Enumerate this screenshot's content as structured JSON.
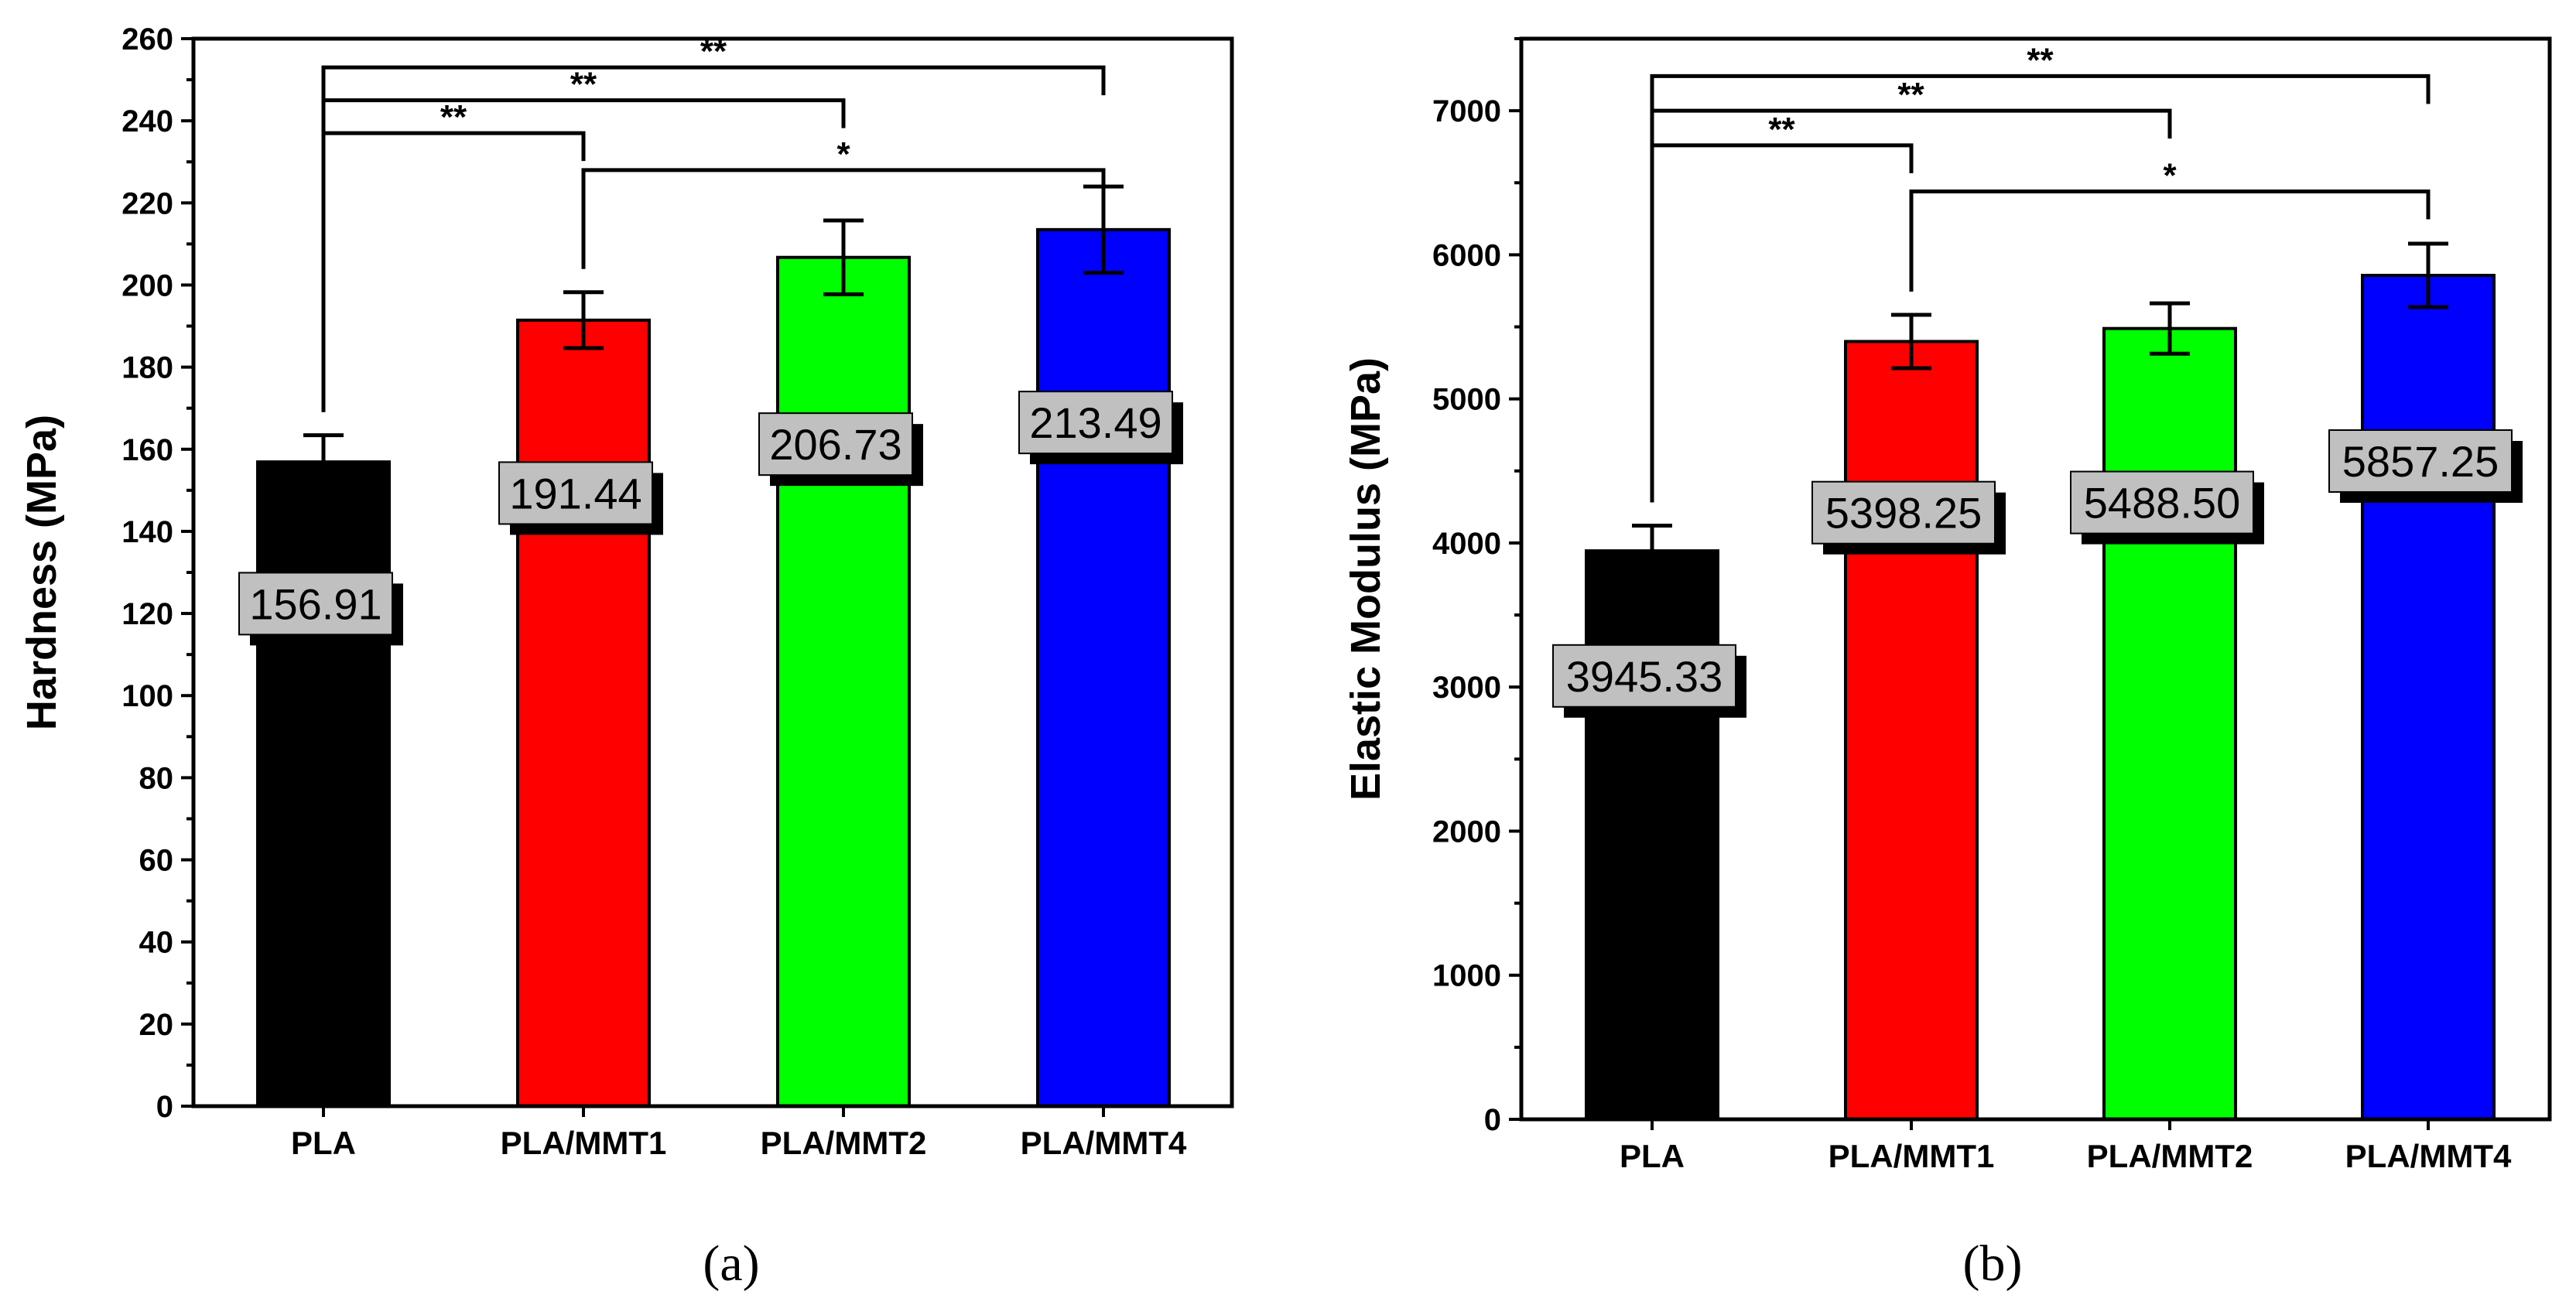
{
  "chart_data": [
    {
      "id": "a",
      "type": "bar",
      "caption": "(a)",
      "ylabel": "Hardness (MPa)",
      "xlabel": "",
      "ylim": [
        0,
        260
      ],
      "yticks": [
        0,
        20,
        40,
        60,
        80,
        100,
        120,
        140,
        160,
        180,
        200,
        220,
        240,
        260
      ],
      "categories": [
        "PLA",
        "PLA/MMT1",
        "PLA/MMT2",
        "PLA/MMT4"
      ],
      "values": [
        156.91,
        191.44,
        206.73,
        213.49
      ],
      "errors": [
        6.5,
        6.8,
        9.0,
        10.5
      ],
      "labels": [
        "156.91",
        "191.44",
        "206.73",
        "213.49"
      ],
      "colors": [
        "#000000",
        "#ff0000",
        "#00ff00",
        "#0000ff"
      ],
      "significance": [
        {
          "from": 0,
          "to": 3,
          "level": 253,
          "text": "**"
        },
        {
          "from": 0,
          "to": 2,
          "level": 245,
          "text": "**"
        },
        {
          "from": 0,
          "to": 1,
          "level": 237,
          "text": "**"
        },
        {
          "from": 1,
          "to": 3,
          "level": 228,
          "text": "*"
        }
      ]
    },
    {
      "id": "b",
      "type": "bar",
      "caption": "(b)",
      "ylabel": "Elastic Modulus (MPa)",
      "xlabel": "",
      "ylim": [
        0,
        7500
      ],
      "yticks": [
        0,
        1000,
        2000,
        3000,
        4000,
        5000,
        6000,
        7000
      ],
      "categories": [
        "PLA",
        "PLA/MMT1",
        "PLA/MMT2",
        "PLA/MMT4"
      ],
      "values": [
        3945.33,
        5398.25,
        5488.5,
        5857.25
      ],
      "errors": [
        175,
        185,
        175,
        220
      ],
      "labels": [
        "3945.33",
        "5398.25",
        "5488.50",
        "5857.25"
      ],
      "colors": [
        "#000000",
        "#ff0000",
        "#00ff00",
        "#0000ff"
      ],
      "significance": [
        {
          "from": 0,
          "to": 3,
          "level": 7240,
          "text": "**"
        },
        {
          "from": 0,
          "to": 2,
          "level": 7000,
          "text": "**"
        },
        {
          "from": 0,
          "to": 1,
          "level": 6760,
          "text": "**"
        },
        {
          "from": 1,
          "to": 3,
          "level": 6440,
          "text": "*"
        }
      ]
    }
  ]
}
